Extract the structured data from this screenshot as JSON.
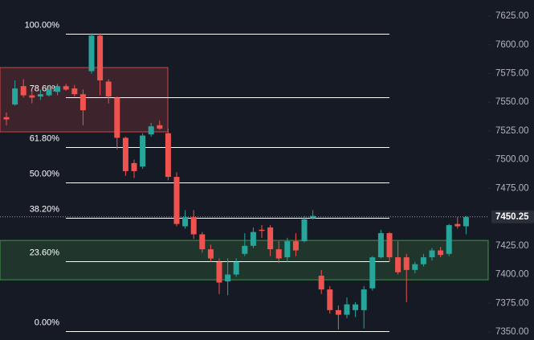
{
  "chart_data": {
    "type": "candlestick",
    "up_color": "#26a69a",
    "down_color": "#ef5350",
    "open": [
      7537,
      7548,
      7564,
      7556,
      7555,
      7556,
      7559,
      7564,
      7562,
      7557,
      7577,
      7608,
      7568,
      7554,
      7519,
      7497,
      7494,
      7522,
      7530,
      7523,
      7485,
      7442,
      7450,
      7435,
      7422,
      7411,
      7394,
      7400,
      7418,
      7425,
      7439,
      7441,
      7422,
      7415,
      7429,
      7429,
      7449,
      7399,
      7387,
      7369,
      7365,
      7369,
      7369,
      7388,
      7415,
      7436,
      7415,
      7415,
      7404,
      7409,
      7415,
      7421,
      7418,
      7444,
      7442
    ],
    "high": [
      7541,
      7569,
      7570,
      7561,
      7561,
      7565,
      7566,
      7566,
      7565,
      7561,
      7610,
      7610,
      7570,
      7555,
      7520,
      7500,
      7523,
      7532,
      7534,
      7527,
      7489,
      7456,
      7456,
      7437,
      7426,
      7414,
      7414,
      7414,
      7436,
      7441,
      7443,
      7443,
      7429,
      7432,
      7436,
      7451,
      7456,
      7404,
      7390,
      7373,
      7380,
      7376,
      7390,
      7416,
      7439,
      7437,
      7429,
      7418,
      7411,
      7418,
      7423,
      7424,
      7444,
      7450,
      7451
    ],
    "low": [
      7530,
      7547,
      7554,
      7549,
      7552,
      7555,
      7556,
      7560,
      7555,
      7530,
      7575,
      7556,
      7549,
      7509,
      7486,
      7484,
      7492,
      7520,
      7526,
      7482,
      7442,
      7440,
      7431,
      7419,
      7411,
      7383,
      7382,
      7398,
      7416,
      7423,
      7432,
      7416,
      7410,
      7411,
      7416,
      7428,
      7448,
      7383,
      7366,
      7352,
      7362,
      7363,
      7353,
      7386,
      7414,
      7411,
      7400,
      7376,
      7401,
      7407,
      7412,
      7415,
      7416,
      7440,
      7435
    ],
    "close": [
      7535,
      7562,
      7556,
      7554,
      7557,
      7561,
      7564,
      7561,
      7557,
      7543,
      7608,
      7569,
      7555,
      7519,
      7490,
      7490,
      7521,
      7529,
      7527,
      7485,
      7444,
      7450,
      7435,
      7422,
      7414,
      7393,
      7400,
      7411,
      7425,
      7437,
      7438,
      7422,
      7414,
      7429,
      7421,
      7448,
      7451,
      7387,
      7369,
      7365,
      7374,
      7374,
      7387,
      7415,
      7436,
      7415,
      7402,
      7404,
      7409,
      7415,
      7421,
      7417,
      7443,
      7442,
      7450
    ],
    "ylim": [
      7343,
      7639
    ],
    "yticks": [
      {
        "value": 7350,
        "label": "7350.00"
      },
      {
        "value": 7375,
        "label": "7375.00"
      },
      {
        "value": 7400,
        "label": "7400.00"
      },
      {
        "value": 7425,
        "label": "7425.00"
      },
      {
        "value": 7475,
        "label": "7475.00"
      },
      {
        "value": 7500,
        "label": "7500.00"
      },
      {
        "value": 7525,
        "label": "7525.00"
      },
      {
        "value": 7550,
        "label": "7550.00"
      },
      {
        "value": 7575,
        "label": "7575.00"
      },
      {
        "value": 7600,
        "label": "7600.00"
      },
      {
        "value": 7625,
        "label": "7625.00"
      }
    ],
    "current_price": 7450.25,
    "fib": {
      "high": 7609.6,
      "low": 7350.7,
      "color": "#ffffff",
      "levels": [
        {
          "value": 100,
          "label": "100.00%"
        },
        {
          "value": 78.6,
          "label": "78.60%"
        },
        {
          "value": 61.8,
          "label": "61.80%"
        },
        {
          "value": 50,
          "label": "50.00%"
        },
        {
          "value": 38.2,
          "label": "38.20%"
        },
        {
          "value": 23.6,
          "label": "23.60%"
        },
        {
          "value": 0,
          "label": "0.00%"
        }
      ]
    },
    "zones": [
      {
        "top": 7580.2,
        "bottom": 7524.2,
        "color": "#ef5350"
      },
      {
        "top": 7429.7,
        "bottom": 7395.4,
        "color": "#4caf50"
      }
    ]
  }
}
